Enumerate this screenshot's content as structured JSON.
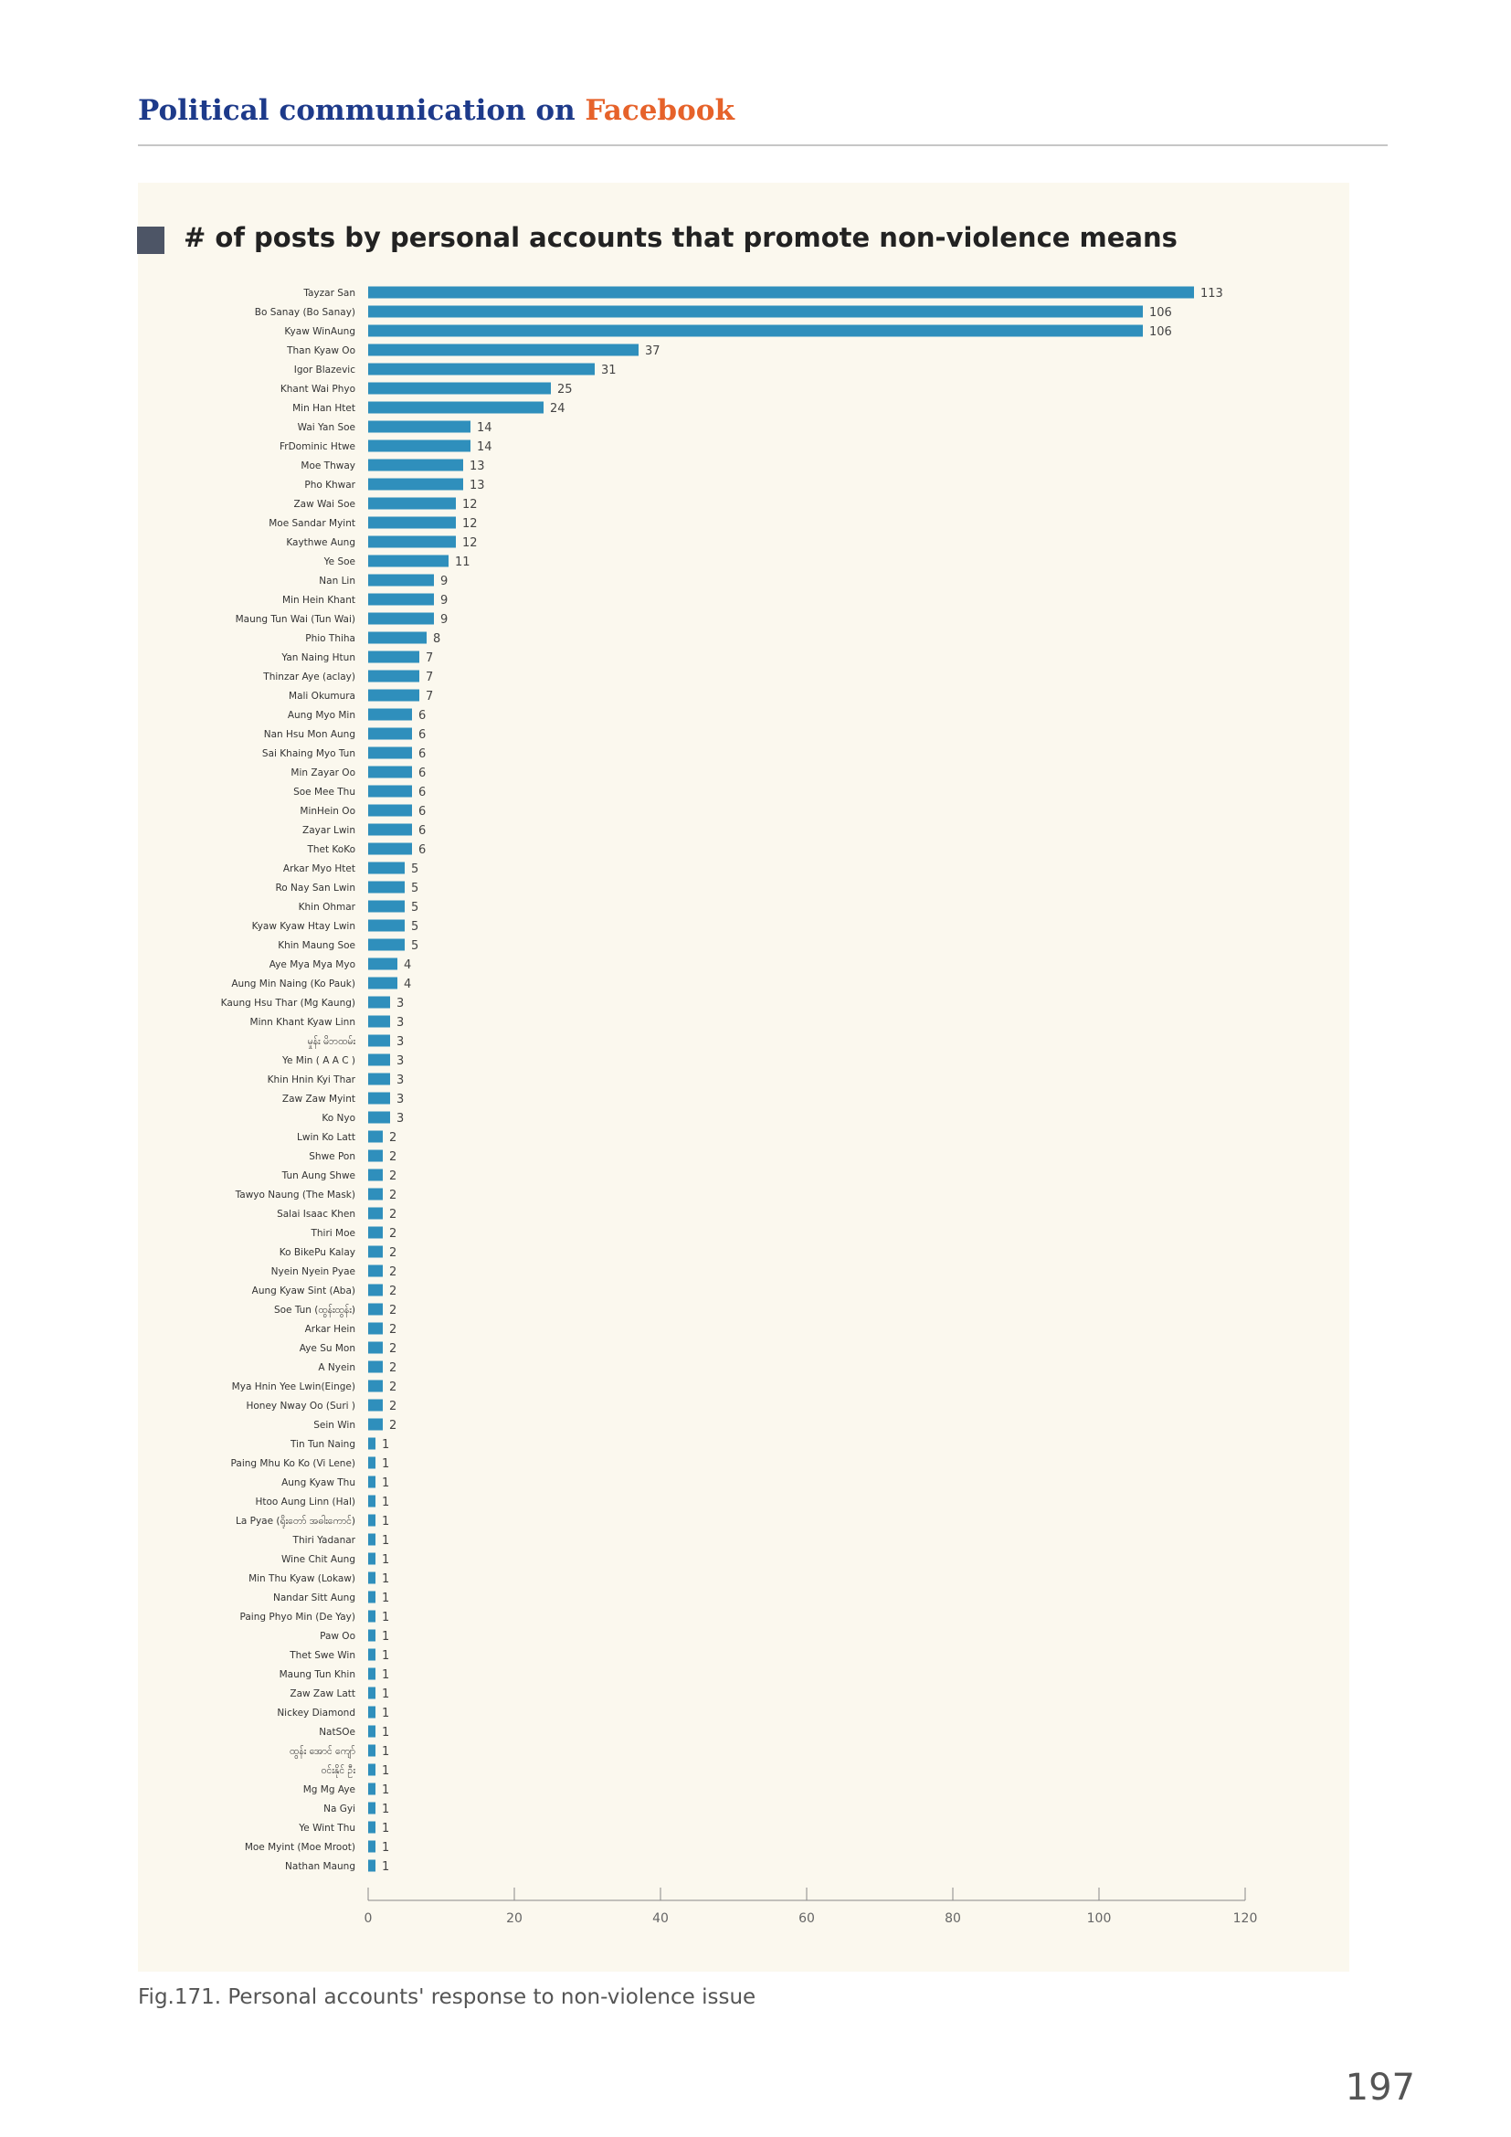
{
  "header": {
    "text_main": "Political communication on ",
    "text_accent": "Facebook"
  },
  "caption": "Fig.171. Personal accounts' response to non-violence issue",
  "page_number": "197",
  "colors": {
    "bar": "#2f8fbc",
    "panel": "#fbf8ee",
    "header_main": "#1d3a8a",
    "header_accent": "#e6622a",
    "marker": "#4d5566"
  },
  "chart_data": {
    "type": "bar",
    "orientation": "horizontal",
    "title": "# of posts by personal accounts that promote non-violence means",
    "xlim": [
      0,
      120
    ],
    "xticks": [
      0,
      20,
      40,
      60,
      80,
      100,
      120
    ],
    "grid": false,
    "categories": [
      "Tayzar San",
      "Bo Sanay (Bo Sanay)",
      "Kyaw WinAung",
      "Than Kyaw Oo",
      "Igor Blazevic",
      "Khant Wai Phyo",
      "Min Han Htet",
      "Wai Yan Soe",
      "FrDominic Htwe",
      "Moe Thway",
      "Pho Khwar",
      "Zaw Wai Soe",
      "Moe Sandar Myint",
      "Kaythwe Aung",
      "Ye Soe",
      "Nan Lin",
      "Min Hein Khant",
      "Maung Tun Wai (Tun Wai)",
      "Phio Thiha",
      "Yan Naing Htun",
      "Thinzar Aye (aclay)",
      "Mali Okumura",
      "Aung Myo Min",
      "Nan Hsu Mon Aung",
      "Sai Khaing Myo Tun",
      "Min Zayar Oo",
      "Soe Mee Thu",
      "MinHein Oo",
      "Zayar Lwin",
      "Thet KoKo",
      "Arkar Myo Htet",
      "Ro Nay San Lwin",
      "Khin Ohmar",
      "Kyaw Kyaw Htay Lwin",
      "Khin Maung Soe",
      "Aye Mya Mya Myo",
      "Aung Min Naing (Ko Pauk)",
      "Kaung Hsu Thar (Mg Kaung)",
      "Minn Khant Kyaw Linn",
      "မှုန်း မိဘထမ်း",
      "Ye Min ( A A C )",
      "Khin Hnin Kyi Thar",
      "Zaw Zaw Myint",
      "Ko Nyo",
      "Lwin Ko Latt",
      "Shwe Pon",
      "Tun Aung Shwe",
      "Tawyo Naung (The Mask)",
      "Salai Isaac Khen",
      "Thiri Moe",
      "Ko BikePu Kalay",
      "Nyein Nyein Pyae",
      "Aung Kyaw Sint (Aba)",
      "Soe Tun (ထွန်းထွန်း)",
      "Arkar Hein",
      "Aye Su Mon",
      "A Nyein",
      "Mya Hnin Yee Lwin(Einge)",
      "Honey Nway Oo (Suri )",
      "Sein Win",
      "Tin Tun Naing",
      "Paing Mhu Ko Ko (Vi Lene)",
      "Aung Kyaw Thu",
      "Htoo Aung Linn (Hal)",
      "La Pyae (ရိုးတော် အဓါးကောင်)",
      "Thiri Yadanar",
      "Wine Chit Aung",
      "Min Thu Kyaw (Lokaw)",
      "Nandar Sitt Aung",
      "Paing Phyo Min (De Yay)",
      "Paw Oo",
      "Thet Swe Win",
      "Maung Tun Khin",
      "Zaw Zaw Latt",
      "Nickey Diamond",
      "NatSOe",
      "ထွန်း အောင် ကျော်",
      "ဝင်းနိုင် ဦး",
      "Mg Mg Aye",
      "Na Gyi",
      "Ye Wint Thu",
      "Moe Myint (Moe Mroot)",
      "Nathan Maung"
    ],
    "values": [
      113,
      106,
      106,
      37,
      31,
      25,
      24,
      14,
      14,
      13,
      13,
      12,
      12,
      12,
      11,
      9,
      9,
      9,
      8,
      7,
      7,
      7,
      6,
      6,
      6,
      6,
      6,
      6,
      6,
      6,
      5,
      5,
      5,
      5,
      5,
      4,
      4,
      3,
      3,
      3,
      3,
      3,
      3,
      3,
      2,
      2,
      2,
      2,
      2,
      2,
      2,
      2,
      2,
      2,
      2,
      2,
      2,
      2,
      2,
      2,
      1,
      1,
      1,
      1,
      1,
      1,
      1,
      1,
      1,
      1,
      1,
      1,
      1,
      1,
      1,
      1,
      1,
      1,
      1,
      1,
      1,
      1,
      1
    ]
  }
}
